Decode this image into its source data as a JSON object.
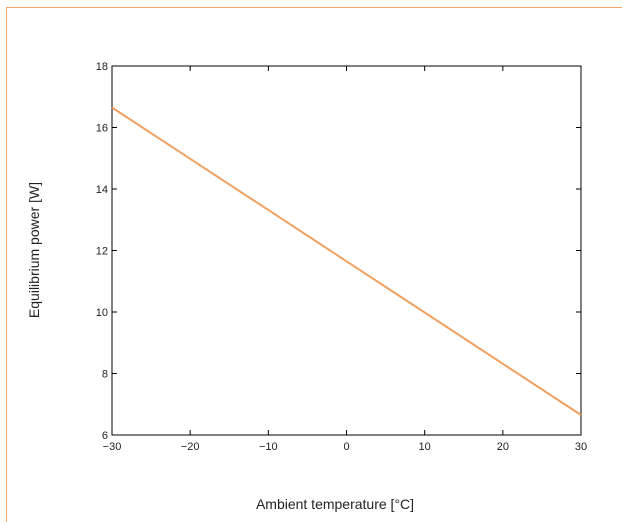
{
  "chart_data": {
    "type": "line",
    "title": "",
    "xlabel": "Ambient temperature [°C]",
    "ylabel": "Equilibrium power [W]",
    "xlim": [
      -30,
      30
    ],
    "ylim": [
      6,
      18
    ],
    "xticks": [
      -30,
      -20,
      -10,
      0,
      10,
      20,
      30
    ],
    "yticks": [
      6,
      8,
      10,
      12,
      14,
      16,
      18
    ],
    "xtick_labels": [
      "−30",
      "−20",
      "−10",
      "0",
      "10",
      "20",
      "30"
    ],
    "ytick_labels": [
      "6",
      "8",
      "10",
      "12",
      "14",
      "16",
      "18"
    ],
    "grid": false,
    "legend": "none",
    "series": [
      {
        "color": "#f0a060",
        "x": [
          -30,
          30
        ],
        "y": [
          16.65,
          6.65
        ]
      }
    ]
  },
  "colors": {
    "frame": "#f0a868",
    "axes": "#000000",
    "line": "#f0a060"
  }
}
